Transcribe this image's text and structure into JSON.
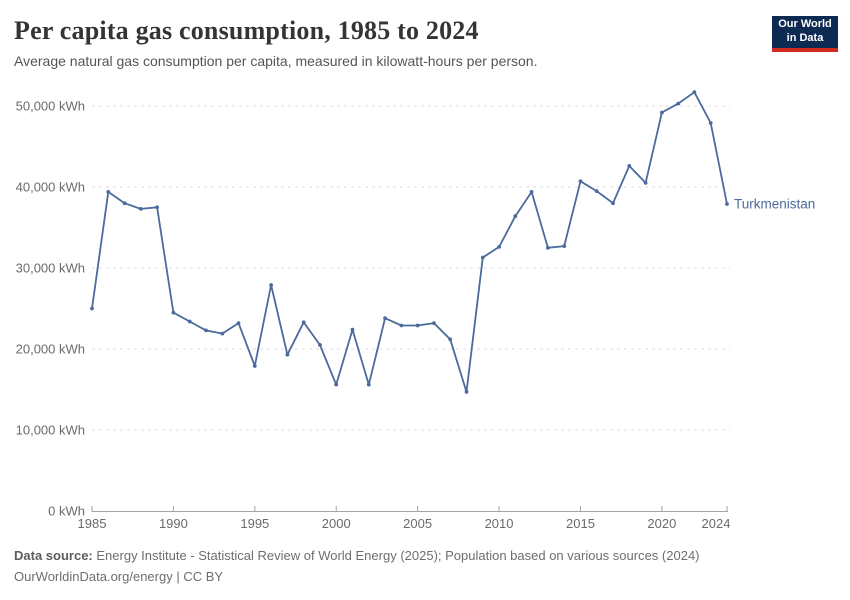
{
  "header": {
    "title": "Per capita gas consumption, 1985 to 2024",
    "subtitle": "Average natural gas consumption per capita, measured in kilowatt-hours per person.",
    "logo": {
      "line1": "Our World",
      "line2": "in Data",
      "bg_color": "#0d2b52",
      "accent_color": "#d12b1f"
    }
  },
  "chart_data": {
    "type": "line",
    "title": "Per capita gas consumption, 1985 to 2024",
    "xlabel": "",
    "ylabel": "",
    "unit": "kWh",
    "grid": "horizontal-dashed",
    "legend_position": "end-of-line-label",
    "xlim": [
      1985,
      2024
    ],
    "ylim": [
      0,
      50000
    ],
    "x": [
      1985,
      1986,
      1987,
      1988,
      1989,
      1990,
      1991,
      1992,
      1993,
      1994,
      1995,
      1996,
      1997,
      1998,
      1999,
      2000,
      2001,
      2002,
      2003,
      2004,
      2005,
      2006,
      2007,
      2008,
      2009,
      2010,
      2011,
      2012,
      2013,
      2014,
      2015,
      2016,
      2017,
      2018,
      2019,
      2020,
      2021,
      2022,
      2023,
      2024
    ],
    "series": [
      {
        "name": "Turkmenistan",
        "color": "#4c6a9c",
        "values": [
          25000,
          39400,
          38000,
          37300,
          37500,
          24500,
          23400,
          22300,
          21900,
          23200,
          17900,
          27900,
          19300,
          23300,
          20500,
          15600,
          22400,
          15600,
          23800,
          22900,
          22900,
          23200,
          21200,
          14700,
          31300,
          32600,
          36400,
          39400,
          32500,
          32700,
          40700,
          39500,
          38000,
          42600,
          40500,
          49200,
          50300,
          51700,
          47900,
          37900
        ]
      }
    ],
    "y_ticks": [
      0,
      10000,
      20000,
      30000,
      40000,
      50000
    ],
    "y_tick_labels": [
      "0 kWh",
      "10,000 kWh",
      "20,000 kWh",
      "30,000 kWh",
      "40,000 kWh",
      "50,000 kWh"
    ],
    "x_ticks": [
      1985,
      1990,
      1995,
      2000,
      2005,
      2010,
      2015,
      2020,
      2024
    ],
    "x_tick_labels": [
      "1985",
      "1990",
      "1995",
      "2000",
      "2005",
      "2010",
      "2015",
      "2020",
      "2024"
    ],
    "colors": {
      "gridline": "#dddddd",
      "axis": "#a3a3a3",
      "tick_label": "#6b6b6b"
    }
  },
  "footer": {
    "datasource_label": "Data source:",
    "datasource_text": "Energy Institute - Statistical Review of World Energy (2025); Population based on various sources (2024)",
    "license_text": "OurWorldinData.org/energy | CC BY"
  }
}
